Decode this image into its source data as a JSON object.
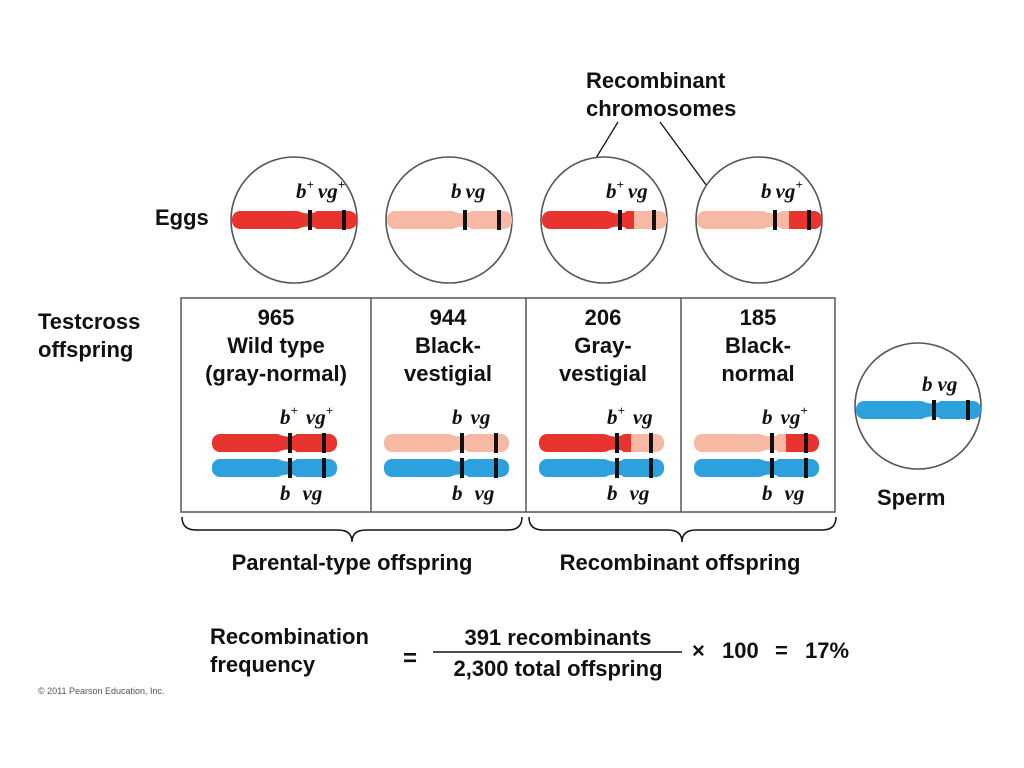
{
  "title": {
    "line1": "Recombinant",
    "line2": "chromosomes"
  },
  "eggs_label": "Eggs",
  "sperm_label": "Sperm",
  "testcross_label": {
    "line1": "Testcross",
    "line2": "offspring"
  },
  "colors": {
    "red": "#e8332e",
    "pink": "#f7b9a3",
    "blue": "#2da1dd",
    "band": "#111111"
  },
  "allele_mark": "+",
  "eggs": [
    {
      "left_gene": "b",
      "left_plus": true,
      "right_gene": "vg",
      "right_plus": true,
      "left_color": "red",
      "right_color": "red"
    },
    {
      "left_gene": "b",
      "left_plus": false,
      "right_gene": "vg",
      "right_plus": false,
      "left_color": "pink",
      "right_color": "pink"
    },
    {
      "left_gene": "b",
      "left_plus": true,
      "right_gene": "vg",
      "right_plus": false,
      "left_color": "red",
      "right_color": "pink"
    },
    {
      "left_gene": "b",
      "left_plus": false,
      "right_gene": "vg",
      "right_plus": true,
      "left_color": "pink",
      "right_color": "red"
    }
  ],
  "sperm": {
    "left_gene": "b",
    "right_gene": "vg",
    "color": "blue"
  },
  "offspring": [
    {
      "count": "965",
      "line1": "Wild type",
      "line2": "(gray-normal)"
    },
    {
      "count": "944",
      "line1": "Black-",
      "line2": "vestigial"
    },
    {
      "count": "206",
      "line1": "Gray-",
      "line2": "vestigial"
    },
    {
      "count": "185",
      "line1": "Black-",
      "line2": "normal"
    }
  ],
  "groups": {
    "parental": "Parental-type offspring",
    "recombinant": "Recombinant offspring"
  },
  "formula": {
    "label_line1": "Recombination",
    "label_line2": "frequency",
    "equals": "=",
    "numerator": "391 recombinants",
    "denominator": "2,300 total offspring",
    "times": "×",
    "multiplier": "100",
    "equals2": "=",
    "result": "17%"
  },
  "copyright": "© 2011 Pearson Education, Inc."
}
